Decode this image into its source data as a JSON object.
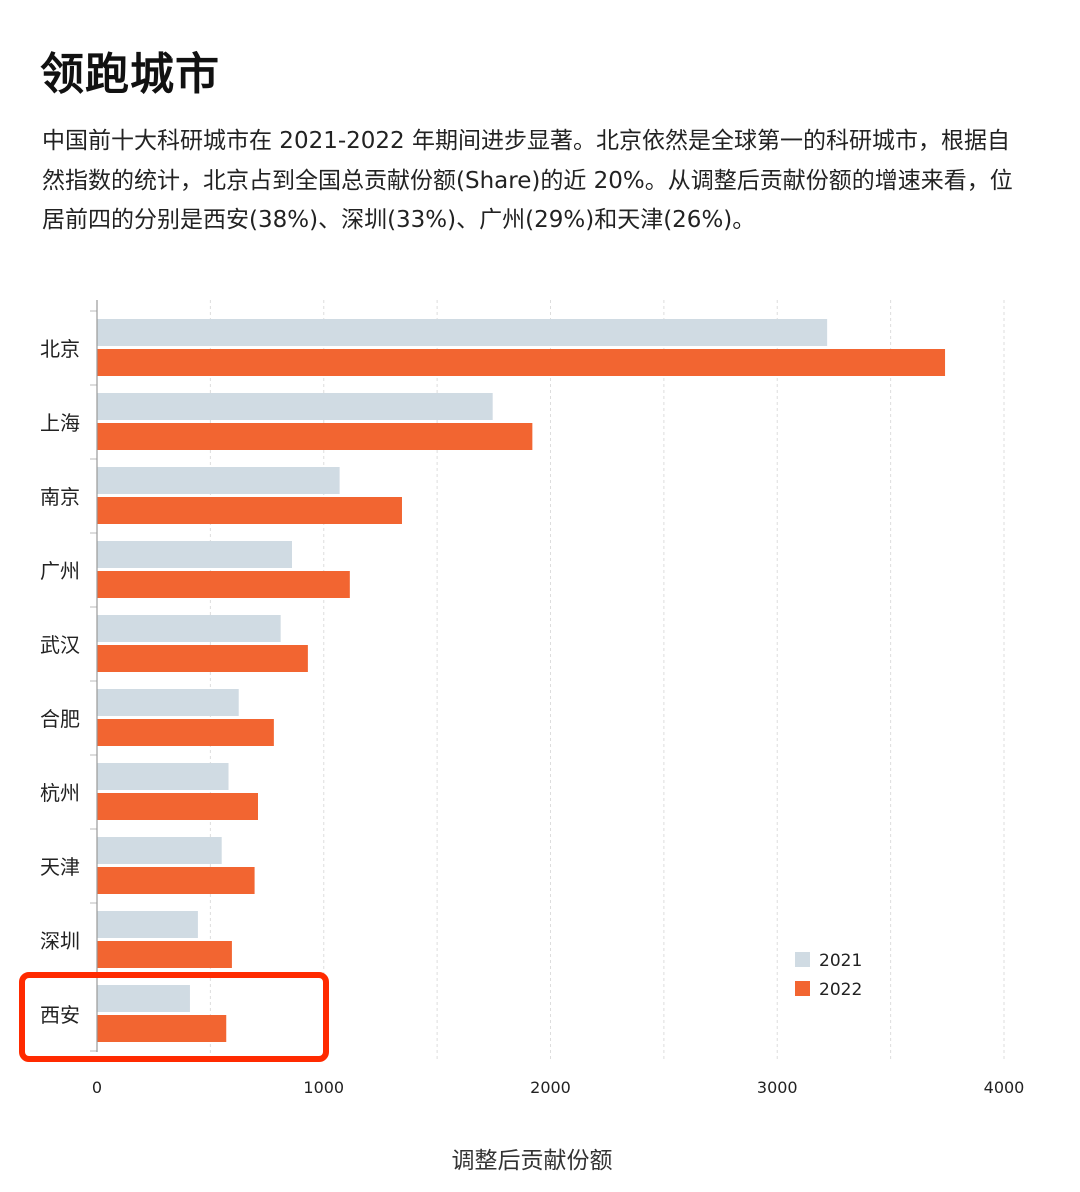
{
  "header": {
    "title": "领跑城市",
    "intro": "中国前十大科研城市在 2021-2022 年期间进步显著。北京依然是全球第一的科研城市，根据自然指数的统计，北京占到全国总贡献份额(Share)的近 20%。从调整后贡献份额的增速来看，位居前四的分别是西安(38%)、深圳(33%)、广州(29%)和天津(26%)。"
  },
  "chart_data": {
    "type": "bar",
    "orientation": "horizontal",
    "categories": [
      "北京",
      "上海",
      "南京",
      "广州",
      "武汉",
      "合肥",
      "杭州",
      "天津",
      "深圳",
      "西安"
    ],
    "series": [
      {
        "name": "2021",
        "color": "#d0dbe3",
        "values": [
          3220,
          1745,
          1070,
          860,
          810,
          625,
          580,
          550,
          445,
          410
        ]
      },
      {
        "name": "2022",
        "color": "#f26531",
        "values": [
          3740,
          1920,
          1345,
          1115,
          930,
          780,
          710,
          695,
          595,
          570
        ]
      }
    ],
    "xlabel": "调整后贡献份额",
    "ylabel": "",
    "xlim": [
      0,
      4000
    ],
    "xticks": [
      "0",
      "1000",
      "2000",
      "3000",
      "4000"
    ],
    "grid": "vertical dashed every 500",
    "legend": "bottom-right",
    "highlighted_category": "西安"
  }
}
